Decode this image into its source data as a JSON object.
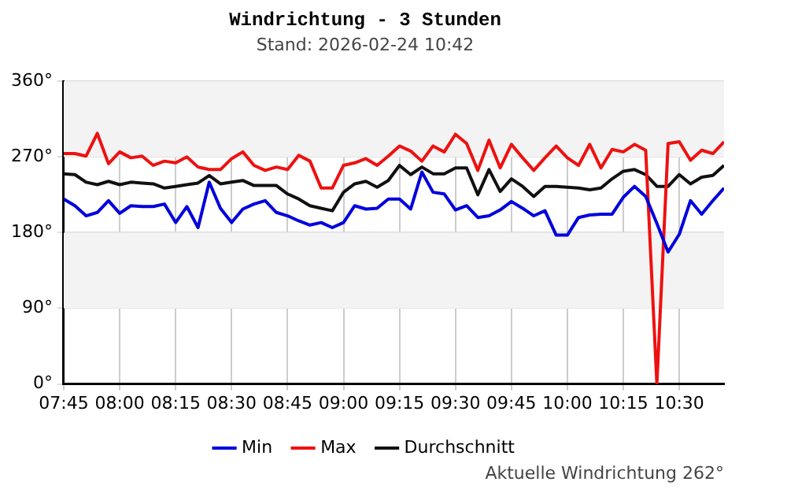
{
  "chart_data": {
    "type": "line",
    "title": "Windrichtung - 3 Stunden",
    "subtitle": "Stand: 2026-02-24 10:42",
    "annotations": [
      "Aktuelle Windrichtung 262°"
    ],
    "x": [
      7.75,
      7.8,
      7.85,
      7.9,
      7.95,
      8.0,
      8.05,
      8.1,
      8.15,
      8.2,
      8.25,
      8.3,
      8.35,
      8.4,
      8.45,
      8.5,
      8.55,
      8.6,
      8.65,
      8.7,
      8.75,
      8.8,
      8.85,
      8.9,
      8.95,
      9.0,
      9.05,
      9.1,
      9.15,
      9.2,
      9.25,
      9.3,
      9.35,
      9.4,
      9.45,
      9.5,
      9.55,
      9.6,
      9.65,
      9.7,
      9.75,
      9.8,
      9.85,
      9.9,
      9.95,
      10.0,
      10.05,
      10.1,
      10.15,
      10.2,
      10.25,
      10.3,
      10.35,
      10.4,
      10.45,
      10.5,
      10.55,
      10.6,
      10.65,
      10.7
    ],
    "series": [
      {
        "name": "Min",
        "color": "#0000dd",
        "values": [
          220,
          212,
          200,
          204,
          218,
          203,
          212,
          211,
          211,
          214,
          192,
          211,
          186,
          240,
          209,
          192,
          208,
          214,
          218,
          204,
          200,
          194,
          189,
          192,
          186,
          192,
          212,
          208,
          209,
          220,
          220,
          208,
          252,
          228,
          226,
          207,
          212,
          198,
          200,
          207,
          217,
          209,
          200,
          206,
          177,
          177,
          198,
          201,
          202,
          202,
          222,
          235,
          223,
          191,
          157,
          178,
          218,
          202,
          218,
          233
        ]
      },
      {
        "name": "Max",
        "color": "#ee1111",
        "values": [
          274,
          274,
          271,
          298,
          262,
          276,
          269,
          271,
          260,
          265,
          263,
          270,
          258,
          255,
          255,
          268,
          276,
          260,
          254,
          258,
          255,
          272,
          265,
          233,
          233,
          260,
          263,
          268,
          260,
          271,
          283,
          277,
          265,
          283,
          276,
          297,
          286,
          254,
          290,
          257,
          285,
          269,
          254,
          269,
          283,
          269,
          260,
          285,
          257,
          279,
          276,
          285,
          278,
          0,
          286,
          288,
          266,
          278,
          274,
          288
        ]
      },
      {
        "name": "Durchschnitt",
        "color": "#111111",
        "values": [
          250,
          249,
          240,
          237,
          241,
          237,
          240,
          239,
          238,
          233,
          235,
          237,
          239,
          248,
          238,
          240,
          242,
          236,
          236,
          236,
          226,
          220,
          212,
          209,
          206,
          228,
          238,
          241,
          234,
          242,
          260,
          249,
          258,
          250,
          250,
          257,
          257,
          225,
          255,
          229,
          244,
          235,
          223,
          235,
          235,
          234,
          233,
          231,
          233,
          244,
          253,
          255,
          249,
          235,
          235,
          249,
          238,
          246,
          248,
          260
        ]
      }
    ],
    "xlim": [
      7.75,
      10.7
    ],
    "xticks": [
      {
        "value": 7.75,
        "label": "07:45"
      },
      {
        "value": 8.0,
        "label": "08:00"
      },
      {
        "value": 8.25,
        "label": "08:15"
      },
      {
        "value": 8.5,
        "label": "08:30"
      },
      {
        "value": 8.75,
        "label": "08:45"
      },
      {
        "value": 9.0,
        "label": "09:00"
      },
      {
        "value": 9.25,
        "label": "09:15"
      },
      {
        "value": 9.5,
        "label": "09:30"
      },
      {
        "value": 9.75,
        "label": "09:45"
      },
      {
        "value": 10.0,
        "label": "10:00"
      },
      {
        "value": 10.25,
        "label": "10:15"
      },
      {
        "value": 10.5,
        "label": "10:30"
      }
    ],
    "ylim": [
      0,
      360
    ],
    "yticks": [
      {
        "value": 0,
        "label": "0°"
      },
      {
        "value": 90,
        "label": "90°"
      },
      {
        "value": 180,
        "label": "180°"
      },
      {
        "value": 270,
        "label": "270°"
      },
      {
        "value": 360,
        "label": "360°"
      }
    ],
    "bands": [
      {
        "axis": "y",
        "from": 90,
        "to": 180,
        "color": "#f3f3f3"
      },
      {
        "axis": "y",
        "from": 270,
        "to": 360,
        "color": "#f3f3f3"
      }
    ],
    "grid": true,
    "legend": "bottom",
    "marker": "none",
    "line_style": "solid"
  }
}
